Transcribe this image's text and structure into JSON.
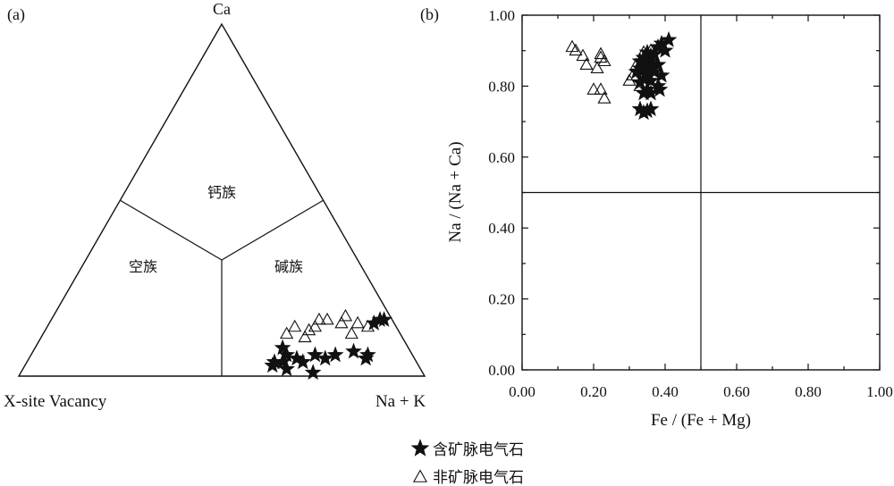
{
  "chart_data": [
    {
      "type": "ternary",
      "panel_label": "(a)",
      "apex_labels": {
        "top": "Ca",
        "left": "X-site Vacancy",
        "right": "Na + K"
      },
      "field_labels": {
        "calcic": "钙族",
        "vacancy": "空族",
        "alkali": "碱族"
      },
      "series": [
        {
          "name": "含矿脉电气石",
          "marker": "star",
          "points": [
            {
              "a": 0.14,
              "b": 0.07
            },
            {
              "a": 0.12,
              "b": 0.05
            },
            {
              "a": 0.11,
              "b": 0.06
            },
            {
              "a": 0.19,
              "b": 0.06
            },
            {
              "a": 0.22,
              "b": 0.05
            },
            {
              "a": 0.24,
              "b": 0.06
            },
            {
              "a": 0.29,
              "b": 0.05
            },
            {
              "a": 0.31,
              "b": 0.06
            },
            {
              "a": 0.33,
              "b": 0.04
            },
            {
              "a": 0.31,
              "b": 0.08
            },
            {
              "a": 0.28,
              "b": 0.04
            },
            {
              "a": 0.35,
              "b": 0.04
            },
            {
              "a": 0.36,
              "b": 0.03
            },
            {
              "a": 0.33,
              "b": 0.02
            },
            {
              "a": 0.27,
              "b": 0.01
            },
            {
              "a": 0.02,
              "b": 0.16
            },
            {
              "a": 0.03,
              "b": 0.16
            },
            {
              "a": 0.05,
              "b": 0.15
            }
          ]
        },
        {
          "name": "非矿脉电气石",
          "marker": "triangle",
          "points": [
            {
              "a": 0.28,
              "b": 0.12
            },
            {
              "a": 0.24,
              "b": 0.11
            },
            {
              "a": 0.22,
              "b": 0.13
            },
            {
              "a": 0.25,
              "b": 0.14
            },
            {
              "a": 0.2,
              "b": 0.14
            },
            {
              "a": 0.18,
              "b": 0.16
            },
            {
              "a": 0.13,
              "b": 0.15
            },
            {
              "a": 0.09,
              "b": 0.15
            },
            {
              "a": 0.11,
              "b": 0.17
            },
            {
              "a": 0.16,
              "b": 0.16
            },
            {
              "a": 0.07,
              "b": 0.14
            },
            {
              "a": 0.12,
              "b": 0.12
            }
          ]
        }
      ]
    },
    {
      "type": "scatter",
      "panel_label": "(b)",
      "xlabel": "Fe / (Fe + Mg)",
      "ylabel": "Na / (Na + Ca)",
      "xlim": [
        0,
        1
      ],
      "ylim": [
        0,
        1
      ],
      "xticks": [
        "0.00",
        "0.20",
        "0.40",
        "0.60",
        "0.80",
        "1.00"
      ],
      "yticks": [
        "0.00",
        "0.20",
        "0.40",
        "0.60",
        "0.80",
        "1.00"
      ],
      "divider_lines": {
        "x": 0.5,
        "y": 0.5
      },
      "grid": false,
      "series": [
        {
          "name": "含矿脉电气石",
          "marker": "star",
          "points": [
            [
              0.41,
              0.93
            ],
            [
              0.39,
              0.92
            ],
            [
              0.38,
              0.91
            ],
            [
              0.4,
              0.9
            ],
            [
              0.37,
              0.89
            ],
            [
              0.35,
              0.895
            ],
            [
              0.36,
              0.885
            ],
            [
              0.34,
              0.88
            ],
            [
              0.35,
              0.875
            ],
            [
              0.36,
              0.87
            ],
            [
              0.33,
              0.87
            ],
            [
              0.34,
              0.86
            ],
            [
              0.38,
              0.86
            ],
            [
              0.35,
              0.855
            ],
            [
              0.33,
              0.85
            ],
            [
              0.36,
              0.85
            ],
            [
              0.34,
              0.845
            ],
            [
              0.37,
              0.84
            ],
            [
              0.32,
              0.84
            ],
            [
              0.35,
              0.835
            ],
            [
              0.39,
              0.83
            ],
            [
              0.34,
              0.82
            ],
            [
              0.36,
              0.815
            ],
            [
              0.33,
              0.81
            ],
            [
              0.38,
              0.8
            ],
            [
              0.35,
              0.79
            ],
            [
              0.34,
              0.78
            ],
            [
              0.385,
              0.79
            ],
            [
              0.36,
              0.78
            ],
            [
              0.33,
              0.735
            ],
            [
              0.35,
              0.73
            ],
            [
              0.34,
              0.725
            ],
            [
              0.36,
              0.735
            ]
          ]
        },
        {
          "name": "非矿脉电气石",
          "marker": "triangle",
          "points": [
            [
              0.14,
              0.91
            ],
            [
              0.15,
              0.9
            ],
            [
              0.17,
              0.885
            ],
            [
              0.18,
              0.86
            ],
            [
              0.21,
              0.85
            ],
            [
              0.22,
              0.88
            ],
            [
              0.23,
              0.87
            ],
            [
              0.22,
              0.89
            ],
            [
              0.2,
              0.79
            ],
            [
              0.22,
              0.79
            ],
            [
              0.23,
              0.765
            ],
            [
              0.3,
              0.815
            ],
            [
              0.31,
              0.83
            ],
            [
              0.33,
              0.845
            ],
            [
              0.32,
              0.86
            ],
            [
              0.34,
              0.87
            ],
            [
              0.35,
              0.885
            ],
            [
              0.34,
              0.895
            ],
            [
              0.36,
              0.9
            ],
            [
              0.33,
              0.8
            ]
          ]
        }
      ]
    }
  ],
  "legend": {
    "placement": "bottom-center",
    "items": [
      {
        "marker": "star",
        "label": "含矿脉电气石"
      },
      {
        "marker": "triangle",
        "label": "非矿脉电气石"
      }
    ]
  }
}
